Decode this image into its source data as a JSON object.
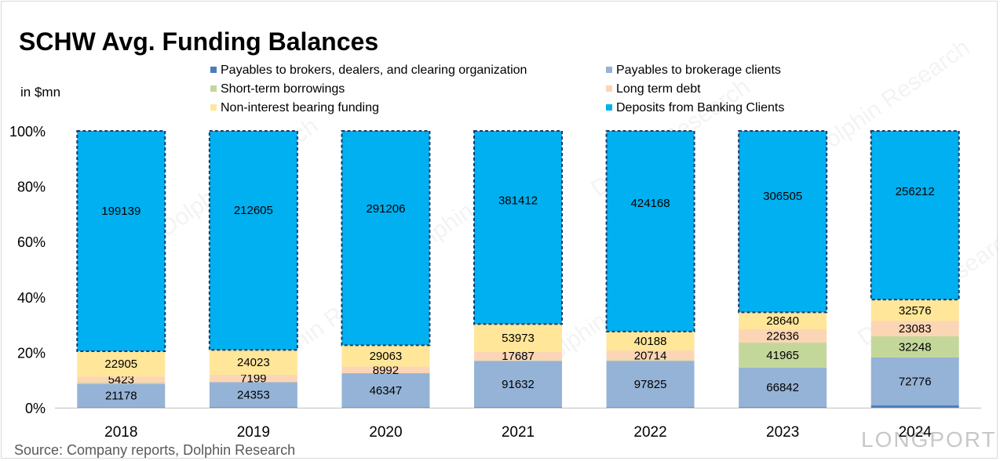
{
  "chart_data": {
    "type": "stacked-bar-100",
    "title": "SCHW Avg. Funding Balances",
    "unit_label": "in $mn",
    "source": "Source:  Company reports, Dolphin Research",
    "categories": [
      "2018",
      "2019",
      "2020",
      "2021",
      "2022",
      "2023",
      "2024"
    ],
    "y_ticks": [
      "0%",
      "20%",
      "40%",
      "60%",
      "80%",
      "100%"
    ],
    "ylim": [
      0,
      100
    ],
    "series": [
      {
        "key": "brokers",
        "name": "Payables to brokers, dealers, and clearing organization",
        "color": "#4a7ebb",
        "values": [
          300,
          400,
          500,
          800,
          1200,
          1100,
          3500
        ],
        "show_labels": false
      },
      {
        "key": "clients",
        "name": "Payables to brokerage clients",
        "color": "#95b3d7",
        "values": [
          21178,
          24353,
          46347,
          91632,
          97825,
          66842,
          72776
        ],
        "show_labels": true
      },
      {
        "key": "shortterm",
        "name": "Short-term borrowings",
        "color": "#c4d79b",
        "values": [
          1200,
          0,
          0,
          900,
          1200,
          41965,
          32248
        ],
        "show_labels": false,
        "label_indices": [
          5,
          6
        ]
      },
      {
        "key": "ltdebt",
        "name": "Long term debt",
        "color": "#fcd5b5",
        "values": [
          5423,
          7199,
          8992,
          17687,
          20714,
          22636,
          23083
        ],
        "show_labels": true
      },
      {
        "key": "nonint",
        "name": "Non-interest bearing funding",
        "color": "#ffe699",
        "values": [
          22905,
          24023,
          29063,
          53973,
          40188,
          28640,
          32576
        ],
        "show_labels": true
      },
      {
        "key": "deposits",
        "name": "Deposits from Banking Clients",
        "color": "#00b0f0",
        "values": [
          199139,
          212605,
          291206,
          381412,
          424168,
          306505,
          256212
        ],
        "show_labels": true,
        "dashed_border": true
      }
    ],
    "legend_position": "top-right",
    "watermarks": [
      "Dolphin Research",
      "LONGPORT"
    ]
  }
}
